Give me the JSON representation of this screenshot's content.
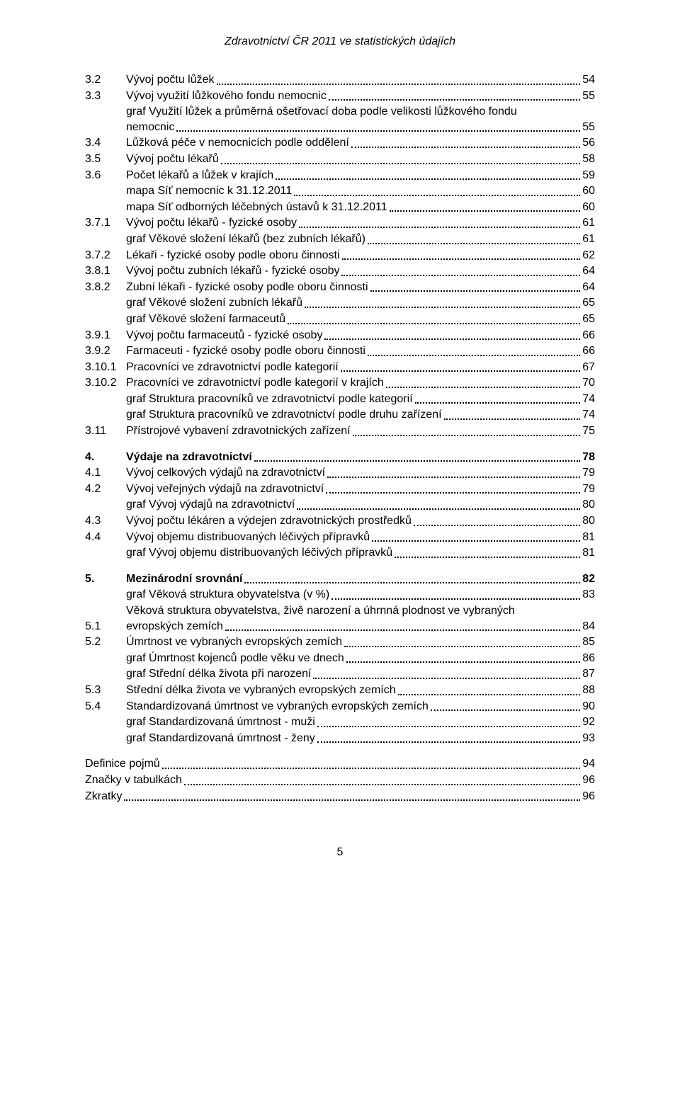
{
  "header": "Zdravotnictví ČR 2011 ve statistických údajích",
  "footer_page": "5",
  "toc": [
    {
      "num": "3.2",
      "label": "Vývoj počtu lůžek",
      "page": "54"
    },
    {
      "num": "3.3",
      "label": "Vývoj využití lůžkového fondu nemocnic",
      "page": "55"
    },
    {
      "num": "",
      "wrap": "graf Využití lůžek a průměrná ošetřovací doba podle velikosti lůžkového fondu",
      "label": "nemocnic",
      "page": "55",
      "indent": true
    },
    {
      "num": "3.4",
      "label": "Lůžková péče v nemocnicích podle oddělení",
      "page": "56"
    },
    {
      "num": "3.5",
      "label": "Vývoj počtu lékařů",
      "page": "58"
    },
    {
      "num": "3.6",
      "label": "Počet lékařů a lůžek v krajích",
      "page": "59"
    },
    {
      "num": "",
      "label": "mapa Síť nemocnic k 31.12.2011",
      "page": "60",
      "indent": true
    },
    {
      "num": "",
      "label": "mapa Síť odborných léčebných ústavů k 31.12.2011",
      "page": "60",
      "indent": true
    },
    {
      "num": "3.7.1",
      "label": "Vývoj počtu lékařů - fyzické osoby",
      "page": "61"
    },
    {
      "num": "",
      "label": "graf Věkové složení lékařů (bez zubních lékařů)",
      "page": "61",
      "indent": true
    },
    {
      "num": "3.7.2",
      "label": "Lékaři - fyzické osoby podle oboru činnosti",
      "page": "62"
    },
    {
      "num": "3.8.1",
      "label": "Vývoj počtu zubních lékařů - fyzické osoby",
      "page": "64"
    },
    {
      "num": "3.8.2",
      "label": "Zubní lékaři - fyzické osoby podle oboru činnosti",
      "page": "64"
    },
    {
      "num": "",
      "label": "graf Věkové složení zubních lékařů",
      "page": "65",
      "indent": true
    },
    {
      "num": "",
      "label": "graf Věkové složení farmaceutů",
      "page": "65",
      "indent": true
    },
    {
      "num": "3.9.1",
      "label": "Vývoj počtu farmaceutů - fyzické osoby",
      "page": "66"
    },
    {
      "num": "3.9.2",
      "label": "Farmaceuti - fyzické osoby podle oboru činnosti",
      "page": "66"
    },
    {
      "num": "3.10.1",
      "label": "Pracovníci ve zdravotnictví podle kategorií",
      "page": "67"
    },
    {
      "num": "3.10.2",
      "label": "Pracovníci ve zdravotnictví podle kategorií v krajích",
      "page": "70"
    },
    {
      "num": "",
      "label": "graf Struktura pracovníků ve zdravotnictví podle kategorií",
      "page": "74",
      "indent": true
    },
    {
      "num": "",
      "label": "graf Struktura pracovníků ve zdravotnictví podle druhu zařízení",
      "page": "74",
      "indent": true
    },
    {
      "num": "3.11",
      "label": "Přístrojové vybavení zdravotnických zařízení",
      "page": "75"
    },
    {
      "gap": true
    },
    {
      "num": "4.",
      "label": "Výdaje na zdravotnictví",
      "page": "78",
      "bold": true
    },
    {
      "num": "4.1",
      "label": "Vývoj celkových výdajů na zdravotnictví",
      "page": "79"
    },
    {
      "num": "4.2",
      "label": "Vývoj veřejných výdajů na zdravotnictví",
      "page": "79"
    },
    {
      "num": "",
      "label": "graf Vývoj výdajů na zdravotnictví",
      "page": "80",
      "indent": true
    },
    {
      "num": "4.3",
      "label": "Vývoj počtu lékáren a výdejen zdravotnických prostředků",
      "page": "80"
    },
    {
      "num": "4.4",
      "label": "Vývoj objemu distribuovaných léčivých přípravků",
      "page": "81"
    },
    {
      "num": "",
      "label": "graf Vývoj objemu distribuovaných léčivých přípravků",
      "page": "81",
      "indent": true
    },
    {
      "gap": true
    },
    {
      "num": "5.",
      "label": "Mezinárodní srovnání",
      "page": "82",
      "bold": true
    },
    {
      "num": "",
      "label": "graf Věková struktura obyvatelstva (v %)",
      "page": "83",
      "indent": true
    },
    {
      "num": "5.1",
      "wrap": "Věková struktura obyvatelstva, živě narození a úhrnná plodnost ve vybraných",
      "label": "evropských zemích",
      "page": "84"
    },
    {
      "num": "5.2",
      "label": "Úmrtnost ve vybraných evropských zemích",
      "page": "85"
    },
    {
      "num": "",
      "label": "graf Úmrtnost kojenců podle věku ve dnech",
      "page": "86",
      "indent": true
    },
    {
      "num": "",
      "label": "graf Střední délka života při narození",
      "page": "87",
      "indent": true
    },
    {
      "num": "5.3",
      "label": "Střední délka života ve vybraných evropských zemích",
      "page": "88"
    },
    {
      "num": "5.4",
      "label": "Standardizovaná úmrtnost ve vybraných evropských zemích",
      "page": "90"
    },
    {
      "num": "",
      "label": "graf Standardizovaná úmrtnost - muži",
      "page": "92",
      "indent": true
    },
    {
      "num": "",
      "label": "graf Standardizovaná úmrtnost - ženy",
      "page": "93",
      "indent": true
    },
    {
      "gap": true
    },
    {
      "num": "",
      "label": "Definice pojmů",
      "page": "94",
      "noindent": true
    },
    {
      "num": "",
      "label": "Značky v tabulkách",
      "page": "96",
      "noindent": true
    },
    {
      "num": "",
      "label": "Zkratky",
      "page": "96",
      "noindent": true
    }
  ]
}
